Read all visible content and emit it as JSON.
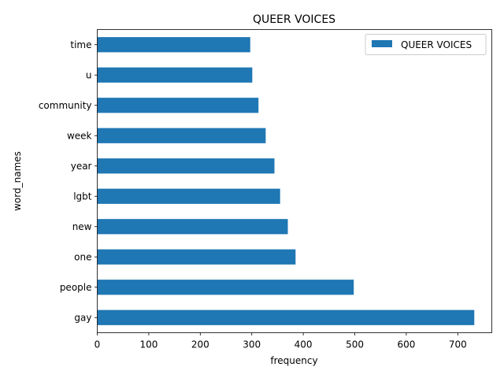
{
  "chart_data": {
    "type": "bar",
    "orientation": "horizontal",
    "title": "QUEER VOICES",
    "xlabel": "frequency",
    "ylabel": "word_names",
    "categories": [
      "gay",
      "people",
      "one",
      "new",
      "lgbt",
      "year",
      "week",
      "community",
      "u",
      "time"
    ],
    "series": [
      {
        "name": "QUEER VOICES",
        "values": [
          732,
          498,
          385,
          370,
          355,
          344,
          327,
          313,
          301,
          297
        ],
        "color": "#1f77b4"
      }
    ],
    "xlim": [
      0,
      766
    ],
    "xticks": [
      0,
      100,
      200,
      300,
      400,
      500,
      600,
      700
    ],
    "grid": false,
    "legend": "top-right"
  }
}
